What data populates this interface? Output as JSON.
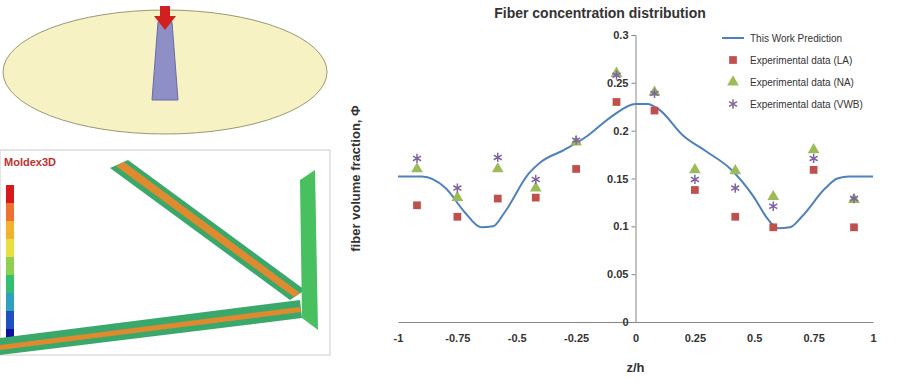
{
  "chart_data": {
    "type": "line",
    "title": "Fiber concentration distribution",
    "x_label": "z/h",
    "y_label": "fiber volume fraction, Φ",
    "annotations": [
      "Moldex3D"
    ],
    "xlim": [
      -1,
      1
    ],
    "xticks": [
      -1,
      -0.75,
      -0.5,
      -0.25,
      0,
      0.25,
      0.5,
      0.75,
      1
    ],
    "ylim": [
      0,
      0.3
    ],
    "yticks": [
      0,
      0.05,
      0.1,
      0.15,
      0.2,
      0.25,
      0.3
    ],
    "grid": false,
    "legend": "upper right",
    "series": [
      {
        "name": "This Work Prediction",
        "type": "line",
        "color": "#4f81bd",
        "line_style": "solid",
        "x": [
          -1,
          -0.9,
          -0.8,
          -0.72,
          -0.65,
          -0.6,
          -0.55,
          -0.45,
          -0.4,
          -0.3,
          -0.2,
          -0.1,
          0,
          0.05,
          0.1,
          0.2,
          0.3,
          0.4,
          0.5,
          0.55,
          0.6,
          0.65,
          0.7,
          0.8,
          0.85,
          0.9,
          1
        ],
        "values": [
          0.152,
          0.152,
          0.14,
          0.115,
          0.099,
          0.1,
          0.115,
          0.155,
          0.167,
          0.18,
          0.195,
          0.215,
          0.228,
          0.228,
          0.222,
          0.195,
          0.178,
          0.16,
          0.13,
          0.11,
          0.098,
          0.099,
          0.11,
          0.14,
          0.15,
          0.152,
          0.152
        ]
      },
      {
        "name": "Experimental data (LA)",
        "type": "scatter",
        "color": "#c0504d",
        "marker": "square",
        "x": [
          -0.92,
          -0.75,
          -0.58,
          -0.42,
          -0.25,
          -0.08,
          0.08,
          0.25,
          0.42,
          0.58,
          0.75,
          0.92
        ],
        "values": [
          0.122,
          0.11,
          0.129,
          0.13,
          0.16,
          0.23,
          0.221,
          0.138,
          0.11,
          0.099,
          0.159,
          0.099
        ]
      },
      {
        "name": "Experimental data (NA)",
        "type": "scatter",
        "color": "#9bbb59",
        "marker": "triangle",
        "x": [
          -0.92,
          -0.75,
          -0.58,
          -0.42,
          -0.25,
          -0.08,
          0.08,
          0.25,
          0.42,
          0.58,
          0.75,
          0.92
        ],
        "values": [
          0.16,
          0.13,
          0.16,
          0.14,
          0.188,
          0.26,
          0.24,
          0.159,
          0.158,
          0.131,
          0.18,
          0.128
        ]
      },
      {
        "name": "Experimental data (VWB)",
        "type": "scatter",
        "color": "#8064a2",
        "marker": "asterisk",
        "x": [
          -0.92,
          -0.75,
          -0.58,
          -0.42,
          -0.25,
          -0.08,
          0.08,
          0.25,
          0.42,
          0.58,
          0.75,
          0.92
        ],
        "values": [
          0.171,
          0.14,
          0.172,
          0.149,
          0.19,
          0.258,
          0.239,
          0.149,
          0.14,
          0.121,
          0.171,
          0.129
        ]
      }
    ]
  }
}
